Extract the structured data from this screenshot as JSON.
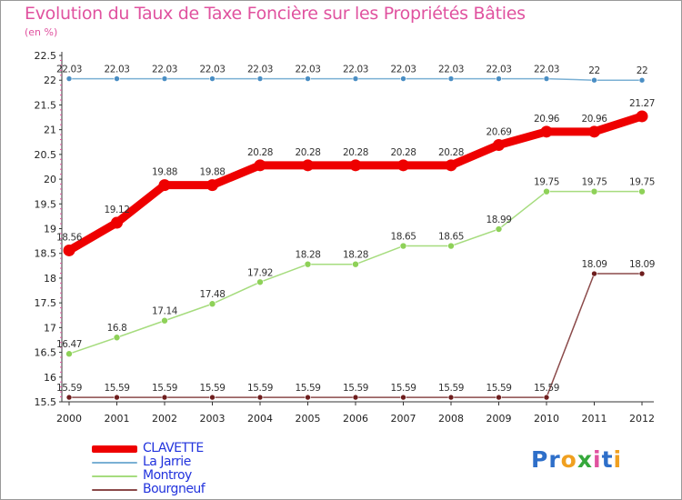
{
  "title": "Evolution du Taux de Taxe Foncière sur les Propriétés Bâties",
  "subtitle": "(en %)",
  "logo": {
    "text": "Proxiti",
    "letters": [
      {
        "ch": "P",
        "color": "#2e6fc9"
      },
      {
        "ch": "r",
        "color": "#2e6fc9"
      },
      {
        "ch": "o",
        "color": "#f0a020"
      },
      {
        "ch": "x",
        "color": "#35a83b"
      },
      {
        "ch": "i",
        "color": "#e0529f"
      },
      {
        "ch": "t",
        "color": "#2e6fc9"
      },
      {
        "ch": "i",
        "color": "#f0a020"
      }
    ]
  },
  "chart_data": {
    "type": "line",
    "x": [
      "2000",
      "2001",
      "2002",
      "2003",
      "2004",
      "2005",
      "2006",
      "2007",
      "2008",
      "2009",
      "2010",
      "2011",
      "2012"
    ],
    "ylim": [
      15.5,
      22.5
    ],
    "yticks": [
      "15.5",
      "16",
      "16.5",
      "17",
      "17.5",
      "18",
      "18.5",
      "19",
      "19.5",
      "20",
      "20.5",
      "21",
      "21.5",
      "22",
      "22.5"
    ],
    "grid": false,
    "legend_position": "bottom-left",
    "series": [
      {
        "name": "CLAVETTE",
        "color": "#ee0000",
        "values": [
          18.56,
          19.12,
          19.88,
          19.88,
          20.28,
          20.28,
          20.28,
          20.28,
          20.28,
          20.69,
          20.96,
          20.96,
          21.27
        ],
        "labels": [
          "18.56",
          "19.12",
          "19.88",
          "19.88",
          "20.28",
          "20.28",
          "20.28",
          "20.28",
          "20.28",
          "20.69",
          "20.96",
          "20.96",
          "21.27"
        ]
      },
      {
        "name": "La Jarrie",
        "color": "#7ab0d4",
        "values": [
          22.03,
          22.03,
          22.03,
          22.03,
          22.03,
          22.03,
          22.03,
          22.03,
          22.03,
          22.03,
          22.03,
          22,
          22
        ],
        "labels": [
          "22.03",
          "22.03",
          "22.03",
          "22.03",
          "22.03",
          "22.03",
          "22.03",
          "22.03",
          "22.03",
          "22.03",
          "22.03",
          "22",
          "22"
        ]
      },
      {
        "name": "Montroy",
        "color": "#a6dc7e",
        "values": [
          16.47,
          16.8,
          17.14,
          17.48,
          17.92,
          18.28,
          18.28,
          18.65,
          18.65,
          18.99,
          19.75,
          19.75,
          19.75
        ],
        "labels": [
          "16.47",
          "16.8",
          "17.14",
          "17.48",
          "17.92",
          "18.28",
          "18.28",
          "18.65",
          "18.65",
          "18.99",
          "19.75",
          "19.75",
          "19.75"
        ]
      },
      {
        "name": "Bourgneuf",
        "color": "#8b4a4a",
        "values": [
          15.59,
          15.59,
          15.59,
          15.59,
          15.59,
          15.59,
          15.59,
          15.59,
          15.59,
          15.59,
          15.59,
          18.09,
          18.09
        ],
        "labels": [
          "15.59",
          "15.59",
          "15.59",
          "15.59",
          "15.59",
          "15.59",
          "15.59",
          "15.59",
          "15.59",
          "15.59",
          "15.59",
          "18.09",
          "18.09"
        ]
      }
    ]
  }
}
